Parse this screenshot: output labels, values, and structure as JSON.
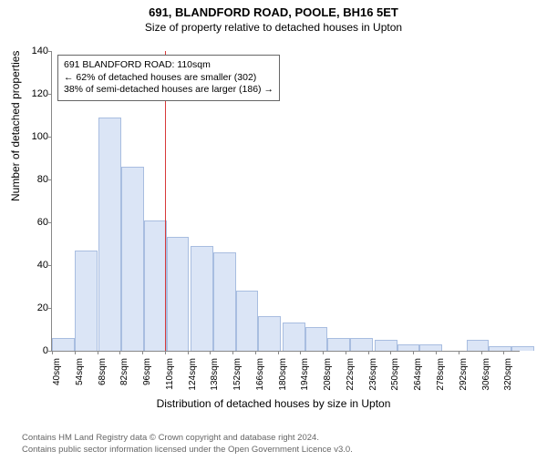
{
  "title": "691, BLANDFORD ROAD, POOLE, BH16 5ET",
  "subtitle": "Size of property relative to detached houses in Upton",
  "ylabel": "Number of detached properties",
  "xlabel": "Distribution of detached houses by size in Upton",
  "footer_line1": "Contains HM Land Registry data © Crown copyright and database right 2024.",
  "footer_line2": "Contains public sector information licensed under the Open Government Licence v3.0.",
  "infobox": {
    "line1": "691 BLANDFORD ROAD: 110sqm",
    "line2": "← 62% of detached houses are smaller (302)",
    "line3": "38% of semi-detached houses are larger (186) →"
  },
  "chart": {
    "type": "histogram",
    "ylim": [
      0,
      140
    ],
    "ytick_step": 20,
    "xmin": 40,
    "xmax": 330,
    "xtick_step": 14,
    "xtick_suffix": "sqm",
    "xticks_skip_at": [
      283
    ],
    "bar_fill": "#dbe5f6",
    "bar_stroke": "#a8bde0",
    "refline_x": 110,
    "refline_color": "#d83a3a",
    "axis_fontsize": 11,
    "tick_fontsize": 10,
    "background": "#ffffff",
    "bars": [
      {
        "x": 40,
        "v": 6
      },
      {
        "x": 54,
        "v": 47
      },
      {
        "x": 69,
        "v": 109
      },
      {
        "x": 83,
        "v": 86
      },
      {
        "x": 97,
        "v": 61
      },
      {
        "x": 111,
        "v": 53
      },
      {
        "x": 126,
        "v": 49
      },
      {
        "x": 140,
        "v": 46
      },
      {
        "x": 154,
        "v": 28
      },
      {
        "x": 168,
        "v": 16
      },
      {
        "x": 183,
        "v": 13
      },
      {
        "x": 197,
        "v": 11
      },
      {
        "x": 211,
        "v": 6
      },
      {
        "x": 225,
        "v": 6
      },
      {
        "x": 240,
        "v": 5
      },
      {
        "x": 254,
        "v": 3
      },
      {
        "x": 268,
        "v": 3
      },
      {
        "x": 297,
        "v": 5
      },
      {
        "x": 311,
        "v": 2
      },
      {
        "x": 325,
        "v": 2
      }
    ]
  }
}
